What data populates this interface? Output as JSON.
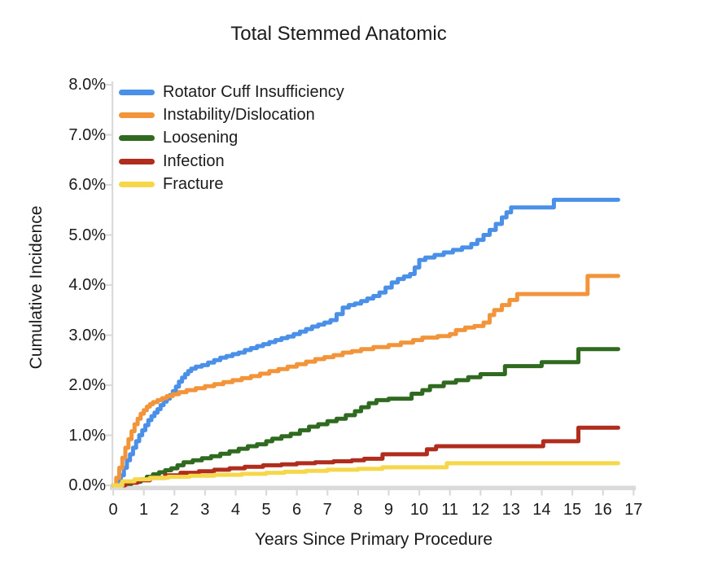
{
  "title": "Total Stemmed Anatomic",
  "chart_data": {
    "type": "line",
    "step": true,
    "title": "Total Stemmed Anatomic",
    "xlabel": "Years Since Primary Procedure",
    "ylabel": "Cumulative Incidence",
    "xlim": [
      0,
      17
    ],
    "ylim_percent": [
      0,
      8
    ],
    "grid": false,
    "legend_position": "inside-top-left",
    "axis_color": "#DADADA",
    "text_color": "#1B1B1B",
    "x_ticks": [
      0,
      1,
      2,
      3,
      4,
      5,
      6,
      7,
      8,
      9,
      10,
      11,
      12,
      13,
      14,
      15,
      16,
      17
    ],
    "y_ticks": [
      {
        "value": 0,
        "label": "0.0%"
      },
      {
        "value": 1,
        "label": "1.0%"
      },
      {
        "value": 2,
        "label": "2.0%"
      },
      {
        "value": 3,
        "label": "3.0%"
      },
      {
        "value": 4,
        "label": "4.0%"
      },
      {
        "value": 5,
        "label": "5.0%"
      },
      {
        "value": 6,
        "label": "6.0%"
      },
      {
        "value": 7,
        "label": "7.0%"
      },
      {
        "value": 8,
        "label": "8.0%"
      }
    ],
    "series": [
      {
        "name": "Rotator Cuff Insufficiency",
        "color": "#4A90E8",
        "points": [
          [
            0,
            0
          ],
          [
            0.15,
            0.1
          ],
          [
            0.25,
            0.2
          ],
          [
            0.35,
            0.35
          ],
          [
            0.45,
            0.5
          ],
          [
            0.55,
            0.62
          ],
          [
            0.65,
            0.75
          ],
          [
            0.75,
            0.88
          ],
          [
            0.85,
            1.0
          ],
          [
            0.95,
            1.1
          ],
          [
            1.05,
            1.2
          ],
          [
            1.15,
            1.3
          ],
          [
            1.25,
            1.38
          ],
          [
            1.35,
            1.45
          ],
          [
            1.45,
            1.52
          ],
          [
            1.55,
            1.6
          ],
          [
            1.65,
            1.67
          ],
          [
            1.75,
            1.73
          ],
          [
            1.85,
            1.8
          ],
          [
            1.95,
            1.88
          ],
          [
            2.05,
            1.97
          ],
          [
            2.15,
            2.07
          ],
          [
            2.25,
            2.15
          ],
          [
            2.35,
            2.22
          ],
          [
            2.45,
            2.28
          ],
          [
            2.55,
            2.33
          ],
          [
            2.7,
            2.37
          ],
          [
            2.9,
            2.4
          ],
          [
            3.1,
            2.45
          ],
          [
            3.3,
            2.5
          ],
          [
            3.5,
            2.55
          ],
          [
            3.7,
            2.58
          ],
          [
            3.9,
            2.62
          ],
          [
            4.1,
            2.65
          ],
          [
            4.3,
            2.7
          ],
          [
            4.5,
            2.74
          ],
          [
            4.7,
            2.78
          ],
          [
            4.9,
            2.82
          ],
          [
            5.1,
            2.86
          ],
          [
            5.3,
            2.9
          ],
          [
            5.5,
            2.94
          ],
          [
            5.7,
            2.97
          ],
          [
            5.9,
            3.02
          ],
          [
            6.1,
            3.07
          ],
          [
            6.3,
            3.12
          ],
          [
            6.5,
            3.17
          ],
          [
            6.7,
            3.21
          ],
          [
            6.9,
            3.25
          ],
          [
            7.1,
            3.3
          ],
          [
            7.3,
            3.42
          ],
          [
            7.5,
            3.55
          ],
          [
            7.7,
            3.6
          ],
          [
            7.9,
            3.63
          ],
          [
            8.1,
            3.68
          ],
          [
            8.3,
            3.73
          ],
          [
            8.5,
            3.78
          ],
          [
            8.7,
            3.85
          ],
          [
            8.9,
            3.95
          ],
          [
            9.1,
            4.05
          ],
          [
            9.3,
            4.12
          ],
          [
            9.5,
            4.17
          ],
          [
            9.7,
            4.22
          ],
          [
            9.85,
            4.35
          ],
          [
            10.0,
            4.5
          ],
          [
            10.2,
            4.55
          ],
          [
            10.5,
            4.6
          ],
          [
            10.8,
            4.65
          ],
          [
            11.1,
            4.7
          ],
          [
            11.4,
            4.75
          ],
          [
            11.7,
            4.82
          ],
          [
            11.9,
            4.9
          ],
          [
            12.1,
            5.0
          ],
          [
            12.3,
            5.1
          ],
          [
            12.5,
            5.22
          ],
          [
            12.7,
            5.35
          ],
          [
            12.85,
            5.45
          ],
          [
            13.0,
            5.55
          ],
          [
            14.4,
            5.7
          ],
          [
            16.5,
            5.7
          ]
        ]
      },
      {
        "name": "Instability/Dislocation",
        "color": "#F2953A",
        "points": [
          [
            0,
            0
          ],
          [
            0.1,
            0.15
          ],
          [
            0.2,
            0.35
          ],
          [
            0.3,
            0.55
          ],
          [
            0.4,
            0.75
          ],
          [
            0.5,
            0.92
          ],
          [
            0.6,
            1.08
          ],
          [
            0.7,
            1.22
          ],
          [
            0.8,
            1.33
          ],
          [
            0.9,
            1.43
          ],
          [
            1.0,
            1.5
          ],
          [
            1.1,
            1.57
          ],
          [
            1.2,
            1.62
          ],
          [
            1.3,
            1.66
          ],
          [
            1.45,
            1.7
          ],
          [
            1.6,
            1.74
          ],
          [
            1.75,
            1.78
          ],
          [
            1.95,
            1.82
          ],
          [
            2.15,
            1.86
          ],
          [
            2.4,
            1.9
          ],
          [
            2.7,
            1.94
          ],
          [
            3.0,
            1.98
          ],
          [
            3.3,
            2.02
          ],
          [
            3.6,
            2.06
          ],
          [
            3.9,
            2.1
          ],
          [
            4.2,
            2.14
          ],
          [
            4.5,
            2.18
          ],
          [
            4.8,
            2.23
          ],
          [
            5.1,
            2.28
          ],
          [
            5.4,
            2.32
          ],
          [
            5.7,
            2.37
          ],
          [
            6.0,
            2.42
          ],
          [
            6.3,
            2.47
          ],
          [
            6.6,
            2.52
          ],
          [
            6.9,
            2.56
          ],
          [
            7.2,
            2.6
          ],
          [
            7.5,
            2.65
          ],
          [
            7.8,
            2.68
          ],
          [
            8.1,
            2.72
          ],
          [
            8.5,
            2.76
          ],
          [
            9.0,
            2.8
          ],
          [
            9.4,
            2.85
          ],
          [
            9.8,
            2.9
          ],
          [
            10.1,
            2.95
          ],
          [
            10.6,
            2.98
          ],
          [
            11.0,
            3.02
          ],
          [
            11.2,
            3.1
          ],
          [
            11.5,
            3.15
          ],
          [
            11.8,
            3.18
          ],
          [
            12.1,
            3.25
          ],
          [
            12.3,
            3.4
          ],
          [
            12.45,
            3.5
          ],
          [
            12.7,
            3.6
          ],
          [
            12.95,
            3.7
          ],
          [
            13.2,
            3.82
          ],
          [
            15.5,
            4.18
          ],
          [
            16.5,
            4.18
          ]
        ]
      },
      {
        "name": "Loosening",
        "color": "#2F6A20",
        "points": [
          [
            0,
            0
          ],
          [
            0.3,
            0.03
          ],
          [
            0.6,
            0.07
          ],
          [
            0.9,
            0.12
          ],
          [
            1.1,
            0.17
          ],
          [
            1.3,
            0.22
          ],
          [
            1.5,
            0.26
          ],
          [
            1.7,
            0.3
          ],
          [
            1.9,
            0.34
          ],
          [
            2.1,
            0.4
          ],
          [
            2.3,
            0.46
          ],
          [
            2.6,
            0.5
          ],
          [
            2.9,
            0.54
          ],
          [
            3.2,
            0.58
          ],
          [
            3.5,
            0.63
          ],
          [
            3.8,
            0.68
          ],
          [
            4.1,
            0.73
          ],
          [
            4.4,
            0.78
          ],
          [
            4.7,
            0.82
          ],
          [
            5.0,
            0.88
          ],
          [
            5.2,
            0.93
          ],
          [
            5.5,
            0.98
          ],
          [
            5.8,
            1.03
          ],
          [
            6.1,
            1.1
          ],
          [
            6.4,
            1.17
          ],
          [
            6.7,
            1.22
          ],
          [
            7.0,
            1.28
          ],
          [
            7.3,
            1.33
          ],
          [
            7.6,
            1.4
          ],
          [
            7.9,
            1.48
          ],
          [
            8.1,
            1.56
          ],
          [
            8.35,
            1.64
          ],
          [
            8.6,
            1.7
          ],
          [
            9.0,
            1.73
          ],
          [
            9.75,
            1.83
          ],
          [
            10.1,
            1.9
          ],
          [
            10.35,
            1.98
          ],
          [
            10.8,
            2.05
          ],
          [
            11.2,
            2.1
          ],
          [
            11.6,
            2.16
          ],
          [
            12.0,
            2.22
          ],
          [
            12.8,
            2.38
          ],
          [
            14.0,
            2.46
          ],
          [
            15.2,
            2.72
          ],
          [
            16.5,
            2.72
          ]
        ]
      },
      {
        "name": "Infection",
        "color": "#B02C1D",
        "points": [
          [
            0,
            0
          ],
          [
            0.4,
            0.05
          ],
          [
            0.8,
            0.1
          ],
          [
            1.2,
            0.15
          ],
          [
            1.7,
            0.2
          ],
          [
            2.2,
            0.25
          ],
          [
            2.8,
            0.28
          ],
          [
            3.3,
            0.31
          ],
          [
            3.8,
            0.34
          ],
          [
            4.3,
            0.37
          ],
          [
            4.9,
            0.4
          ],
          [
            5.5,
            0.42
          ],
          [
            6.0,
            0.44
          ],
          [
            6.6,
            0.46
          ],
          [
            7.2,
            0.48
          ],
          [
            7.8,
            0.5
          ],
          [
            8.2,
            0.53
          ],
          [
            8.8,
            0.62
          ],
          [
            10.25,
            0.72
          ],
          [
            10.55,
            0.78
          ],
          [
            14.05,
            0.88
          ],
          [
            15.2,
            1.15
          ],
          [
            16.5,
            1.15
          ]
        ]
      },
      {
        "name": "Fracture",
        "color": "#F6D74A",
        "points": [
          [
            0,
            0
          ],
          [
            0.3,
            0.08
          ],
          [
            0.7,
            0.12
          ],
          [
            1.2,
            0.15
          ],
          [
            1.8,
            0.17
          ],
          [
            2.5,
            0.19
          ],
          [
            3.3,
            0.21
          ],
          [
            4.2,
            0.23
          ],
          [
            5.0,
            0.25
          ],
          [
            5.6,
            0.27
          ],
          [
            6.3,
            0.29
          ],
          [
            7.0,
            0.31
          ],
          [
            8.0,
            0.33
          ],
          [
            8.8,
            0.36
          ],
          [
            10.9,
            0.44
          ],
          [
            16.5,
            0.44
          ]
        ]
      }
    ]
  }
}
